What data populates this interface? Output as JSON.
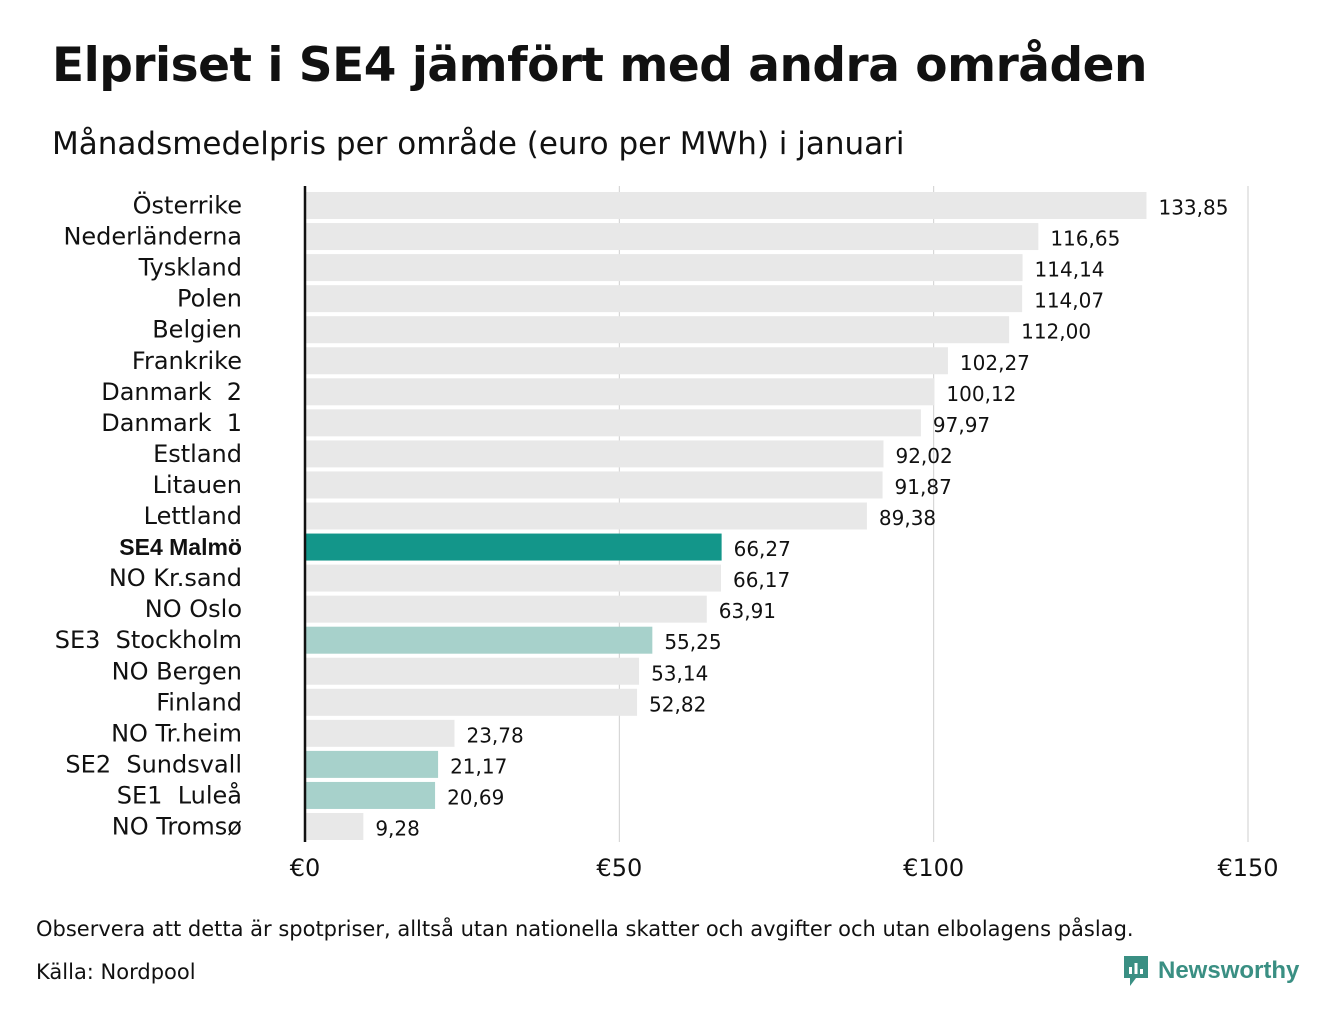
{
  "title": "Elpriset i SE4 jämfört med andra områden",
  "subtitle": "Månadsmedelpris per område (euro per MWh) i januari",
  "footnote": "Observera att detta är spotpriser, alltså utan nationella skatter och avgifter och utan elbolagens påslag.",
  "source": "Källa: Nordpool",
  "brand": {
    "name": "Newsworthy",
    "icon": "newsworthy-logo-icon"
  },
  "colors": {
    "default_bar": "#e8e8e8",
    "highlight_bar": "#13968a",
    "secondary_bar": "#a7d1cb",
    "gridline": "#cfcfcf",
    "axis": "#111111",
    "brand": "#3a8f83"
  },
  "chart_data": {
    "type": "bar",
    "orientation": "horizontal",
    "categories": [
      "Österrike",
      "Nederländerna",
      "Tyskland",
      "Polen",
      "Belgien",
      "Frankrike",
      "Danmark  2",
      "Danmark  1",
      "Estland",
      "Litauen",
      "Lettland",
      "SE4 Malmö",
      "NO Kr.sand",
      "NO Oslo",
      "SE3  Stockholm",
      "NO Bergen",
      "Finland",
      "NO Tr.heim",
      "SE2  Sundsvall",
      "SE1  Luleå",
      "NO Tromsø"
    ],
    "values": [
      133.85,
      116.65,
      114.14,
      114.07,
      112.0,
      102.27,
      100.12,
      97.97,
      92.02,
      91.87,
      89.38,
      66.27,
      66.17,
      63.91,
      55.25,
      53.14,
      52.82,
      23.78,
      21.17,
      20.69,
      9.28
    ],
    "value_labels": [
      "133,85",
      "116,65",
      "114,14",
      "114,07",
      "112,00",
      "102,27",
      "100,12",
      "97,97",
      "92,02",
      "91,87",
      "89,38",
      "66,27",
      "66,17",
      "63,91",
      "55,25",
      "53,14",
      "52,82",
      "23,78",
      "21,17",
      "20,69",
      "9,28"
    ],
    "highlight": [
      "SE4 Malmö"
    ],
    "secondary_highlight": [
      "SE3  Stockholm",
      "SE2  Sundsvall",
      "SE1  Luleå"
    ],
    "xlim": [
      0,
      150
    ],
    "xticks": [
      0,
      50,
      100,
      150
    ],
    "xtick_labels": [
      "€0",
      "€50",
      "€100",
      "€150"
    ],
    "grid": true
  }
}
